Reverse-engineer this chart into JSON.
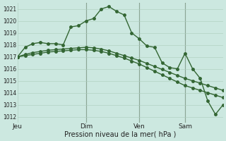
{
  "xlabel": "Pression niveau de la mer( hPa )",
  "bg_color": "#cce8e0",
  "grid_color": "#aaccbb",
  "line_color": "#336633",
  "vline_color": "#667766",
  "ylim": [
    1011.5,
    1021.5
  ],
  "yticks": [
    1012,
    1013,
    1014,
    1015,
    1016,
    1017,
    1018,
    1019,
    1020,
    1021
  ],
  "day_labels": [
    "Jeu",
    "Dim",
    "Ven",
    "Sam"
  ],
  "day_positions": [
    0,
    36,
    64,
    88
  ],
  "xlim": [
    0,
    108
  ],
  "vline_positions": [
    36,
    64,
    88
  ],
  "line1_x": [
    0,
    4,
    8,
    12,
    16,
    20,
    24,
    28,
    32,
    36,
    40,
    44,
    48,
    52,
    56,
    60,
    64,
    68,
    72,
    76,
    80,
    84,
    88,
    92,
    96,
    100,
    104,
    108
  ],
  "line1_y": [
    1017.0,
    1017.8,
    1018.1,
    1018.2,
    1018.1,
    1018.1,
    1018.0,
    1019.5,
    1019.6,
    1020.0,
    1020.2,
    1021.0,
    1021.2,
    1020.8,
    1020.5,
    1019.0,
    1018.5,
    1017.9,
    1017.8,
    1016.5,
    1016.1,
    1016.0,
    1017.3,
    1016.0,
    1015.2,
    1013.3,
    1012.2,
    1013.0
  ],
  "line2_x": [
    0,
    4,
    8,
    12,
    16,
    20,
    24,
    28,
    32,
    36,
    40,
    44,
    48,
    52,
    56,
    60,
    64,
    68,
    72,
    76,
    80,
    84,
    88,
    92,
    96,
    100,
    104,
    108
  ],
  "line2_y": [
    1017.0,
    1017.2,
    1017.35,
    1017.45,
    1017.55,
    1017.6,
    1017.65,
    1017.7,
    1017.75,
    1017.8,
    1017.75,
    1017.65,
    1017.5,
    1017.3,
    1017.1,
    1016.9,
    1016.7,
    1016.45,
    1016.2,
    1015.95,
    1015.7,
    1015.45,
    1015.2,
    1015.0,
    1014.8,
    1014.6,
    1014.4,
    1014.2
  ],
  "line3_x": [
    0,
    4,
    8,
    12,
    16,
    20,
    24,
    28,
    32,
    36,
    40,
    44,
    48,
    52,
    56,
    60,
    64,
    68,
    72,
    76,
    80,
    84,
    88,
    92,
    96,
    100,
    104,
    108
  ],
  "line3_y": [
    1017.0,
    1017.1,
    1017.2,
    1017.3,
    1017.4,
    1017.45,
    1017.5,
    1017.55,
    1017.6,
    1017.6,
    1017.55,
    1017.45,
    1017.3,
    1017.1,
    1016.9,
    1016.65,
    1016.4,
    1016.1,
    1015.8,
    1015.5,
    1015.2,
    1014.9,
    1014.6,
    1014.4,
    1014.2,
    1014.0,
    1013.8,
    1013.6
  ],
  "marker_size": 2.5,
  "line_width": 1.0,
  "ytick_fontsize": 5.5,
  "xtick_fontsize": 6.5,
  "xlabel_fontsize": 7.0
}
